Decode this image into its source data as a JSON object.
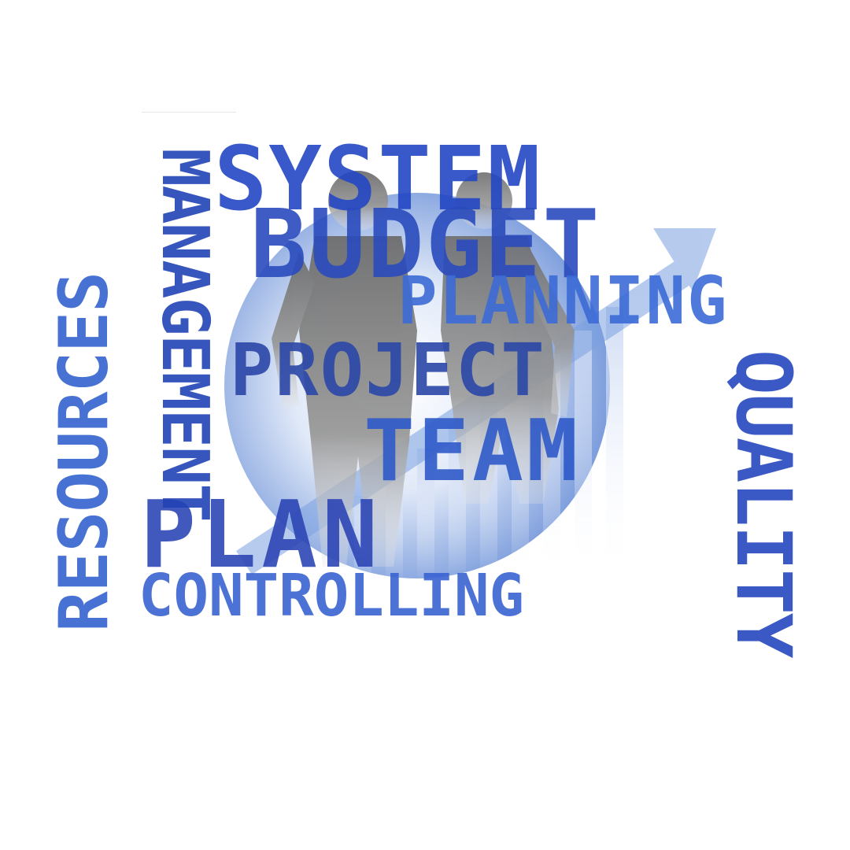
{
  "words": {
    "system": "SYSTEM",
    "budget": "BUDGET",
    "planning": "PLANNING",
    "project": "PROJECT",
    "team": "TEAM",
    "plan": "PLAN",
    "controlling": "CONTROLLING",
    "management": "MANAGEMENT",
    "resources": "RESOURCES",
    "quality": "QUALITY"
  },
  "colors": {
    "deep_blue": "#1f3fb8",
    "mid_blue": "#2a50c8",
    "light_blue": "#3a66d6",
    "globe_blue": "#5b86d6",
    "silhouette_gray": "#7a7a7a"
  }
}
